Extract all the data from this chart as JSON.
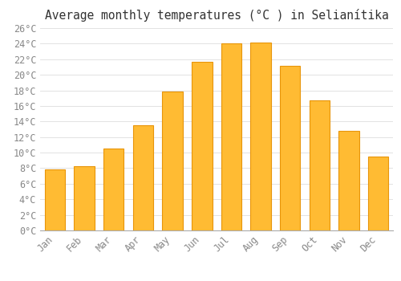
{
  "title": "Average monthly temperatures (°C ) in Selianítika",
  "months": [
    "Jan",
    "Feb",
    "Mar",
    "Apr",
    "May",
    "Jun",
    "Jul",
    "Aug",
    "Sep",
    "Oct",
    "Nov",
    "Dec"
  ],
  "values": [
    7.8,
    8.3,
    10.5,
    13.5,
    17.9,
    21.7,
    24.0,
    24.1,
    21.2,
    16.7,
    12.8,
    9.5
  ],
  "bar_color": "#FFBB33",
  "bar_edge_color": "#E8950A",
  "background_color": "#FFFFFF",
  "grid_color": "#DDDDDD",
  "ylim": [
    0,
    26
  ],
  "ytick_step": 2,
  "title_fontsize": 10.5,
  "tick_fontsize": 8.5,
  "tick_color": "#888888",
  "title_color": "#333333"
}
